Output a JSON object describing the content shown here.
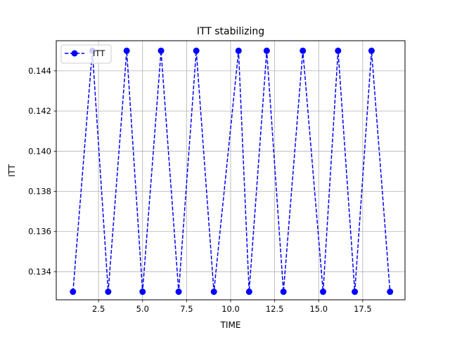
{
  "chart_data": {
    "type": "line",
    "title": "ITT stabilizing",
    "xlabel": "TIME",
    "ylabel": "ITT",
    "xlim": [
      0.1,
      19.9
    ],
    "ylim": [
      0.1326,
      0.1455
    ],
    "xticks": [
      2.5,
      5.0,
      7.5,
      10.0,
      12.5,
      15.0,
      17.5
    ],
    "xtick_labels": [
      "2.5",
      "5.0",
      "7.5",
      "10.0",
      "12.5",
      "15.0",
      "17.5"
    ],
    "yticks": [
      0.134,
      0.136,
      0.138,
      0.14,
      0.142,
      0.144
    ],
    "ytick_labels": [
      "0.134",
      "0.136",
      "0.138",
      "0.140",
      "0.142",
      "0.144"
    ],
    "grid": true,
    "legend_position": "top-left",
    "series": [
      {
        "name": "ITT",
        "color": "#0000ff",
        "linestyle": "dashed",
        "marker": "circle",
        "x": [
          1.05,
          2.15,
          3.05,
          4.1,
          5.0,
          6.05,
          7.05,
          8.05,
          9.05,
          10.45,
          11.05,
          12.05,
          13.0,
          14.1,
          15.25,
          16.1,
          17.05,
          18.0,
          19.05
        ],
        "y": [
          0.133,
          0.145,
          0.133,
          0.145,
          0.133,
          0.145,
          0.133,
          0.145,
          0.133,
          0.145,
          0.133,
          0.145,
          0.133,
          0.145,
          0.133,
          0.145,
          0.133,
          0.145,
          0.133
        ]
      }
    ]
  }
}
